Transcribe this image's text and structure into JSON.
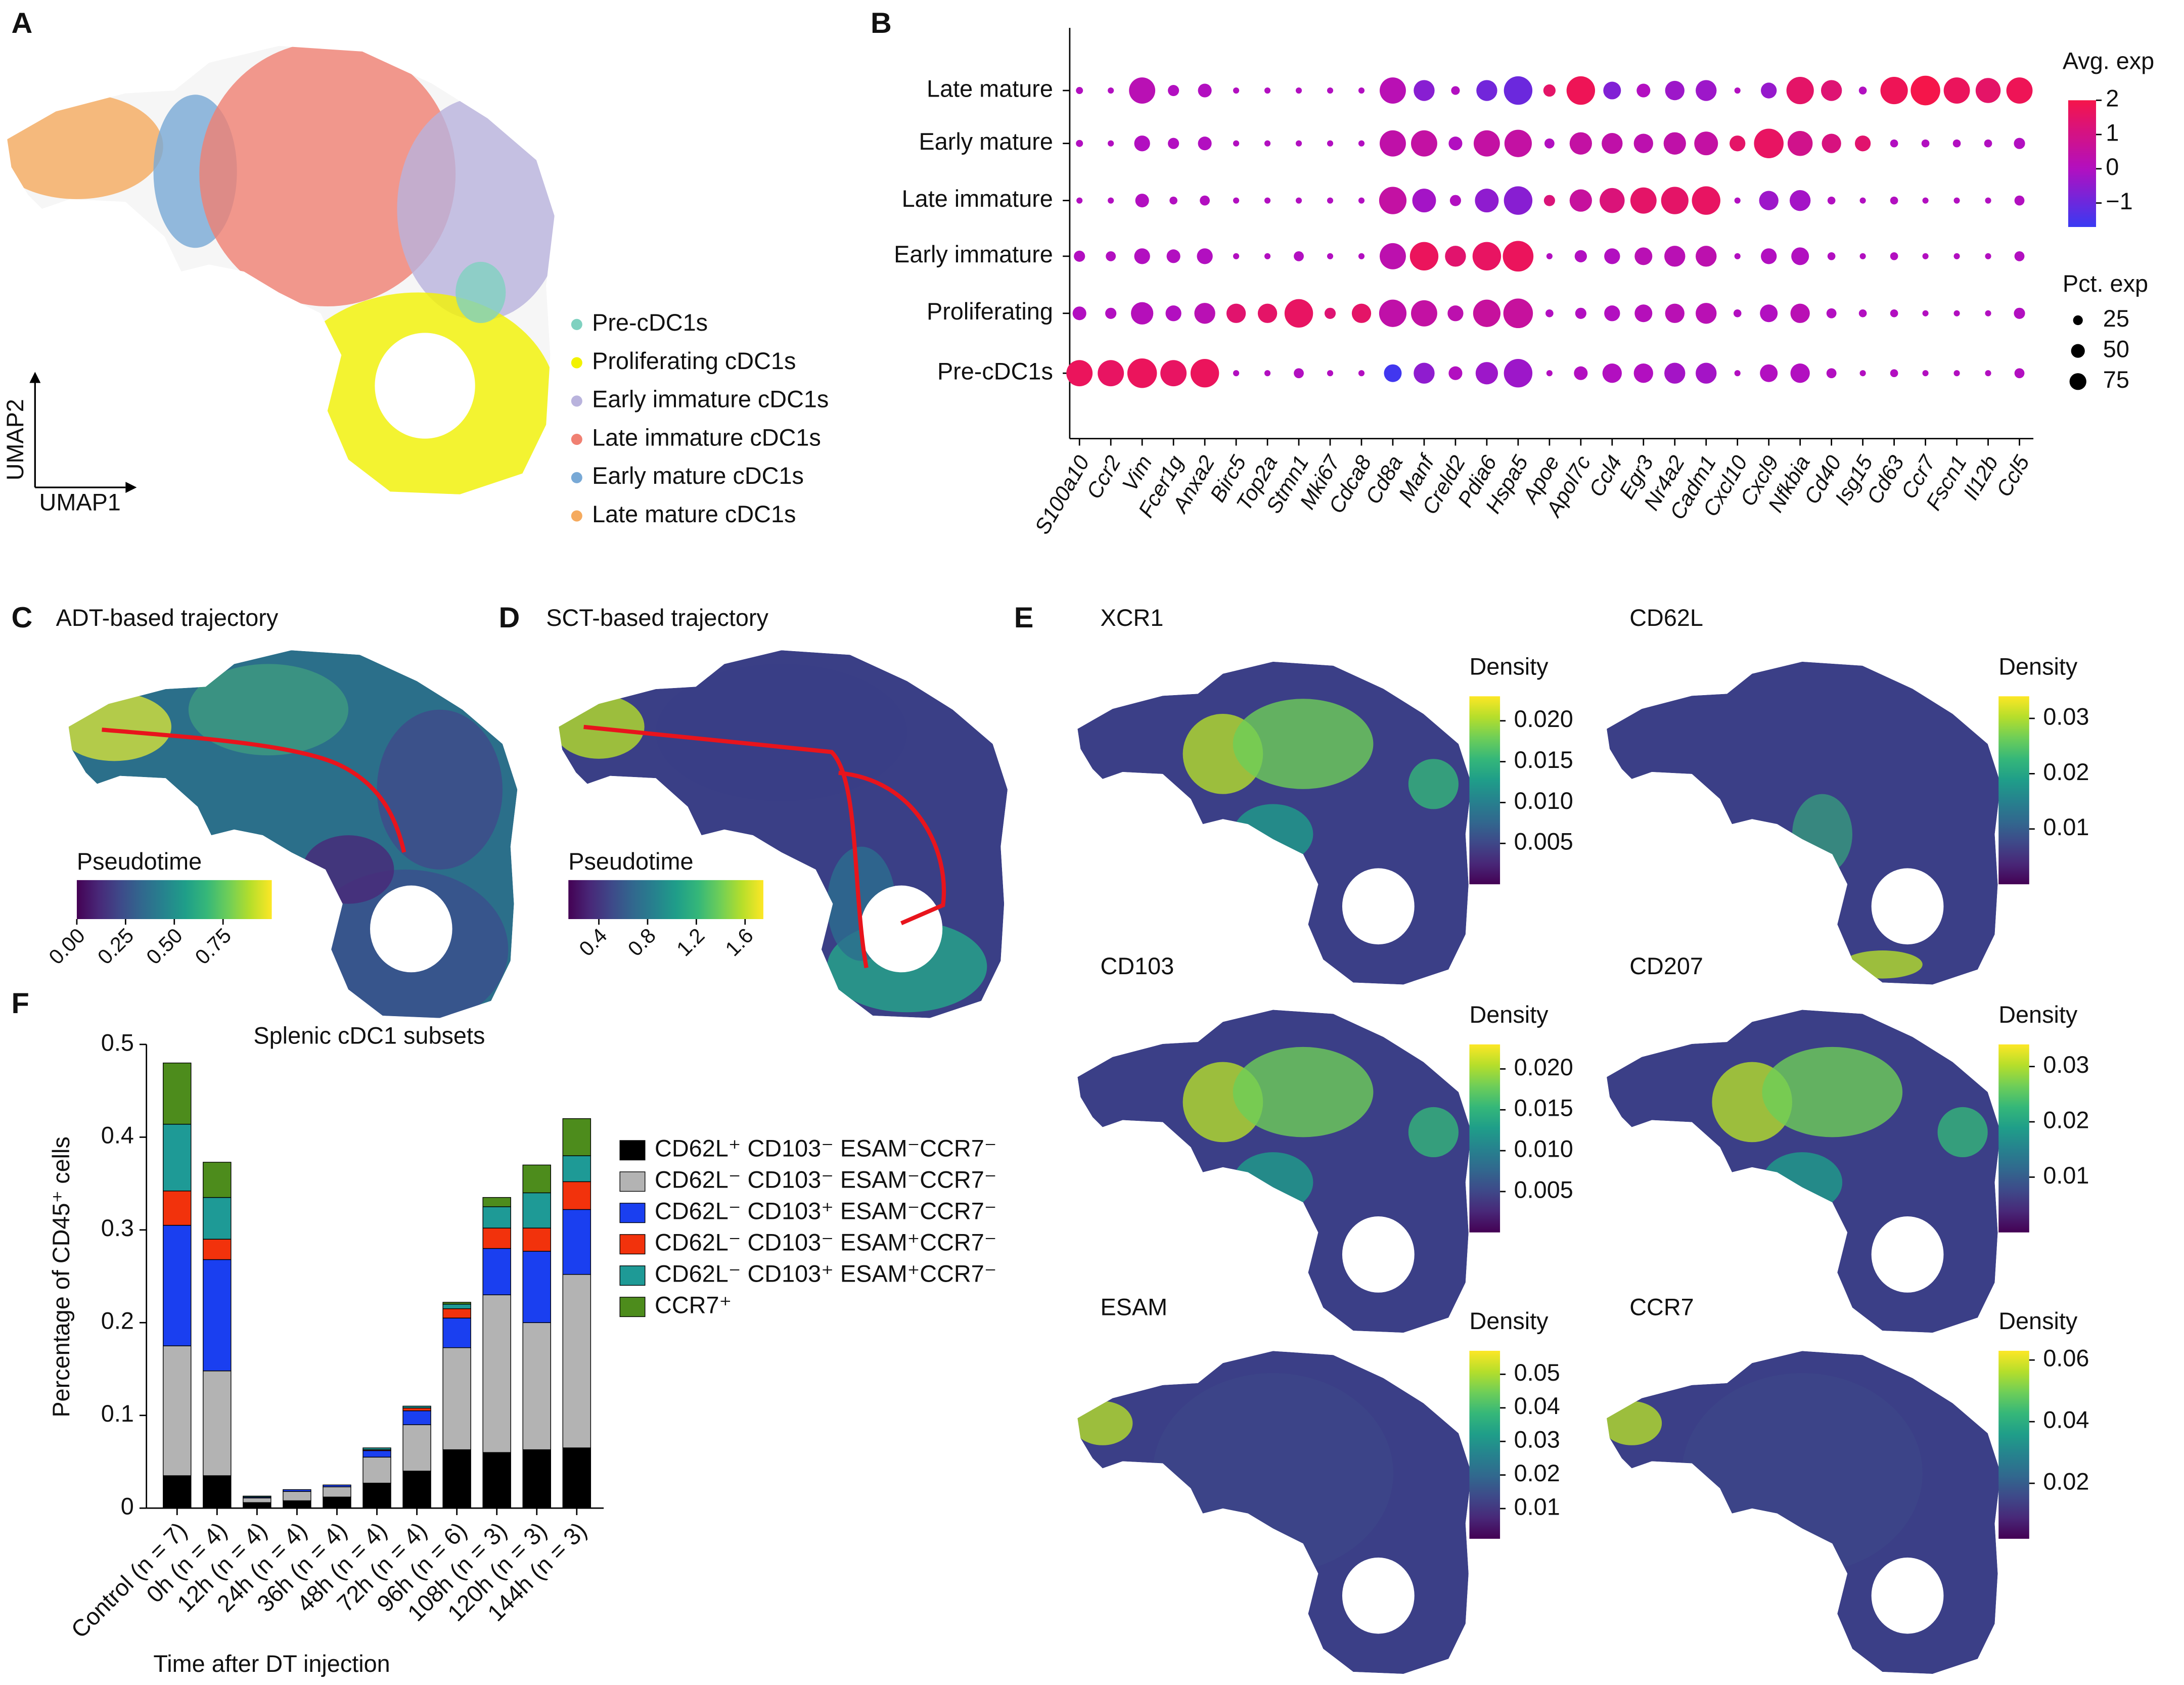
{
  "panel_labels": [
    "A",
    "B",
    "C",
    "D",
    "E",
    "F"
  ],
  "chart_data": [
    {
      "type": "umap",
      "xlabel": "UMAP1",
      "ylabel": "UMAP2",
      "series": [
        {
          "name": "Pre-cDC1s",
          "color": "#7fd1c0"
        },
        {
          "name": "Proliferating cDC1s",
          "color": "#f2f200"
        },
        {
          "name": "Early immature cDC1s",
          "color": "#b9b3dd"
        },
        {
          "name": "Late immature cDC1s",
          "color": "#f08072"
        },
        {
          "name": "Early mature cDC1s",
          "color": "#78a9d6"
        },
        {
          "name": "Late mature cDC1s",
          "color": "#f5aa5e"
        }
      ]
    },
    {
      "type": "dot",
      "categories": [
        "S100a10",
        "Ccr2",
        "Vim",
        "Fcer1g",
        "Anxa2",
        "Birc5",
        "Top2a",
        "Stmn1",
        "Mki67",
        "Cdca8",
        "Cd8a",
        "Manf",
        "Creld2",
        "Pdia6",
        "Hspa5",
        "Apoe",
        "Apol7c",
        "Ccl4",
        "Egr3",
        "Nr4a2",
        "Cadm1",
        "Cxcl10",
        "Cxcl9",
        "Nfkbia",
        "Cd40",
        "Isg15",
        "Cd63",
        "Ccr7",
        "Fscn1",
        "Il12b",
        "Ccl5"
      ],
      "series": [
        {
          "name": "Late mature",
          "values": [
            0,
            0,
            0.2,
            0,
            0,
            0,
            0,
            0,
            0,
            0,
            0.2,
            -0.6,
            0,
            -0.9,
            -1,
            1.5,
            1.8,
            -0.7,
            0,
            -0.3,
            -0.3,
            0,
            -0.4,
            1.5,
            1.3,
            0,
            1.8,
            2,
            1.7,
            1.5,
            1.8
          ],
          "sizes": [
            4,
            3,
            55,
            10,
            15,
            3,
            3,
            3,
            3,
            3,
            55,
            35,
            6,
            35,
            65,
            12,
            65,
            25,
            15,
            30,
            35,
            3,
            20,
            60,
            35,
            5,
            60,
            70,
            55,
            50,
            55
          ]
        },
        {
          "name": "Early mature",
          "values": [
            0,
            0,
            0,
            0,
            0,
            0,
            0,
            0,
            0,
            0,
            0.4,
            0.5,
            0,
            0.5,
            0.5,
            0,
            0.5,
            0.4,
            0.3,
            0.4,
            0.5,
            1.5,
            1.6,
            0.9,
            1.1,
            1.4,
            0,
            0,
            0,
            0,
            0
          ],
          "sizes": [
            4,
            3,
            20,
            10,
            15,
            3,
            3,
            3,
            3,
            3,
            55,
            55,
            15,
            55,
            60,
            8,
            40,
            35,
            30,
            40,
            45,
            20,
            70,
            50,
            30,
            20,
            5,
            5,
            5,
            5,
            10
          ]
        },
        {
          "name": "Late immature",
          "values": [
            0,
            0,
            0,
            0,
            0,
            0,
            0,
            0,
            0,
            0,
            0.5,
            -0.2,
            0,
            -0.5,
            -0.6,
            1.2,
            0.6,
            1.2,
            1.5,
            1.5,
            1.6,
            0,
            -0.3,
            -0.2,
            0,
            0,
            0,
            0,
            0,
            0,
            0
          ],
          "sizes": [
            3,
            3,
            15,
            5,
            8,
            3,
            3,
            3,
            3,
            3,
            60,
            45,
            10,
            45,
            65,
            10,
            40,
            50,
            55,
            60,
            65,
            3,
            30,
            35,
            5,
            3,
            5,
            3,
            3,
            3,
            8
          ]
        },
        {
          "name": "Early immature",
          "values": [
            0,
            0,
            0,
            0,
            0,
            0,
            0,
            0,
            0,
            0,
            0.3,
            1.7,
            1.4,
            1.6,
            1.7,
            0,
            0,
            0,
            0.2,
            0.2,
            0.3,
            0,
            0,
            0,
            0,
            0,
            0,
            0,
            0,
            0,
            0
          ],
          "sizes": [
            10,
            8,
            20,
            15,
            20,
            3,
            3,
            8,
            3,
            3,
            55,
            65,
            35,
            65,
            75,
            3,
            12,
            20,
            25,
            35,
            35,
            3,
            20,
            25,
            5,
            3,
            5,
            3,
            3,
            3,
            8
          ]
        },
        {
          "name": "Proliferating",
          "values": [
            0,
            0,
            0.1,
            0,
            0.2,
            1.4,
            1.5,
            1.6,
            1.3,
            1.5,
            0.4,
            0.5,
            0.3,
            0.6,
            0.6,
            0,
            0,
            0,
            0.1,
            0.2,
            0.2,
            0,
            0,
            0.2,
            0,
            0,
            0,
            0,
            0,
            0,
            0
          ],
          "sizes": [
            15,
            10,
            40,
            20,
            35,
            30,
            30,
            65,
            10,
            30,
            60,
            55,
            20,
            60,
            70,
            5,
            10,
            20,
            25,
            30,
            35,
            5,
            25,
            30,
            8,
            5,
            5,
            3,
            3,
            3,
            10
          ]
        },
        {
          "name": "Pre-cDC1s",
          "values": [
            1.7,
            1.6,
            1.7,
            1.6,
            1.7,
            0,
            0,
            0,
            0,
            0,
            -1.6,
            -0.5,
            0,
            -0.3,
            -0.3,
            0,
            0,
            0,
            0,
            -0.2,
            -0.2,
            0,
            0,
            0,
            0,
            0,
            0,
            0,
            0,
            0,
            0
          ],
          "sizes": [
            55,
            55,
            70,
            55,
            65,
            3,
            3,
            8,
            3,
            3,
            25,
            35,
            15,
            40,
            65,
            3,
            15,
            30,
            30,
            35,
            35,
            3,
            25,
            30,
            8,
            3,
            5,
            3,
            3,
            3,
            8
          ]
        }
      ],
      "color_title": "Avg. exp",
      "clim": [
        -1.7,
        2
      ],
      "cticks": [
        2,
        1,
        0,
        {
          "value": -1,
          "label": "−1"
        }
      ],
      "size_title": "Pct. exp",
      "size_ticks": [
        25,
        50,
        75
      ]
    },
    {
      "type": "trajectory",
      "title": "ADT-based trajectory",
      "colorbar_title": "Pseudotime",
      "clim": [
        0,
        1
      ],
      "cticks": [
        {
          "value": 0,
          "label": "0.00"
        },
        {
          "value": 0.25,
          "label": "0.25"
        },
        {
          "value": 0.5,
          "label": "0.50"
        },
        {
          "value": 0.75,
          "label": "0.75"
        }
      ]
    },
    {
      "type": "trajectory",
      "title": "SCT-based trajectory",
      "colorbar_title": "Pseudotime",
      "clim": [
        0.15,
        1.75
      ],
      "cticks": [
        0.4,
        0.8,
        1.2,
        1.6
      ]
    },
    {
      "type": "density",
      "title": "XCR1",
      "colorbar_title": "Density",
      "clim": [
        0,
        0.023
      ],
      "cticks": [
        0.005,
        {
          "value": 0.01,
          "label": "0.010"
        },
        0.015,
        {
          "value": 0.02,
          "label": "0.020"
        }
      ]
    },
    {
      "type": "density",
      "title": "CD62L",
      "colorbar_title": "Density",
      "clim": [
        0,
        0.034
      ],
      "cticks": [
        0.01,
        0.02,
        0.03
      ]
    },
    {
      "type": "density",
      "title": "CD103",
      "colorbar_title": "Density",
      "clim": [
        0,
        0.023
      ],
      "cticks": [
        0.005,
        {
          "value": 0.01,
          "label": "0.010"
        },
        0.015,
        {
          "value": 0.02,
          "label": "0.020"
        }
      ]
    },
    {
      "type": "density",
      "title": "CD207",
      "colorbar_title": "Density",
      "clim": [
        0,
        0.034
      ],
      "cticks": [
        0.01,
        0.02,
        0.03
      ]
    },
    {
      "type": "density",
      "title": "ESAM",
      "colorbar_title": "Density",
      "clim": [
        0.001,
        0.057
      ],
      "cticks": [
        0.01,
        0.02,
        0.03,
        0.04,
        0.05
      ]
    },
    {
      "type": "density",
      "title": "CCR7",
      "colorbar_title": "Density",
      "clim": [
        0.002,
        0.063
      ],
      "cticks": [
        0.02,
        0.04,
        0.06
      ]
    },
    {
      "type": "stacked_bar",
      "title": "Splenic cDC1 subsets",
      "ylabel": "Percentage of CD45⁺ cells",
      "xlabel": "Time after DT injection",
      "categories": [
        "Control (n = 7)",
        "0h (n = 4)",
        "12h (n = 4)",
        "24h (n = 4)",
        "36h (n = 4)",
        "48h (n = 4)",
        "72h (n = 4)",
        "96h (n = 6)",
        "108h (n = 3)",
        "120h (n = 3)",
        "144h (n = 3)"
      ],
      "ylim": [
        0,
        0.5
      ],
      "yticks": [
        0,
        0.1,
        0.2,
        0.3,
        0.4,
        0.5
      ],
      "series": [
        {
          "name": "CD62L⁺ CD103⁻ ESAM⁻CCR7⁻",
          "color": "#000000",
          "values": [
            0.035,
            0.035,
            0.006,
            0.008,
            0.012,
            0.027,
            0.04,
            0.063,
            0.06,
            0.063,
            0.065
          ]
        },
        {
          "name": "CD62L⁻ CD103⁻ ESAM⁻CCR7⁻",
          "color": "#b3b3b3",
          "values": [
            0.14,
            0.113,
            0.005,
            0.01,
            0.011,
            0.028,
            0.05,
            0.11,
            0.17,
            0.137,
            0.187
          ]
        },
        {
          "name": "CD62L⁻ CD103⁺ ESAM⁻CCR7⁻",
          "color": "#1a3ff0",
          "values": [
            0.13,
            0.12,
            0.001,
            0.002,
            0.002,
            0.007,
            0.015,
            0.032,
            0.05,
            0.077,
            0.07
          ]
        },
        {
          "name": "CD62L⁻ CD103⁻ ESAM⁺CCR7⁻",
          "color": "#f2320c",
          "values": [
            0.037,
            0.022,
            0,
            0,
            0,
            0.001,
            0.003,
            0.01,
            0.022,
            0.025,
            0.03
          ]
        },
        {
          "name": "CD62L⁻ CD103⁺ ESAM⁺CCR7⁻",
          "color": "#1e9a96",
          "values": [
            0.072,
            0.045,
            0.001,
            0,
            0,
            0.002,
            0.002,
            0.005,
            0.023,
            0.038,
            0.028
          ]
        },
        {
          "name": "CCR7⁺",
          "color": "#4d8c1c",
          "values": [
            0.066,
            0.038,
            0,
            0,
            0,
            0,
            0,
            0.002,
            0.01,
            0.03,
            0.04
          ]
        }
      ]
    }
  ]
}
